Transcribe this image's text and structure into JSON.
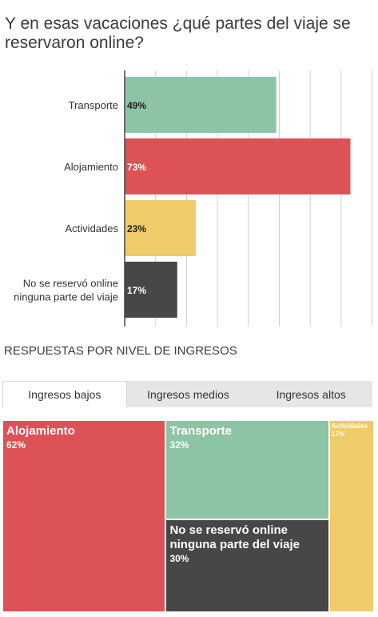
{
  "title": "Y en esas vacaciones ¿qué partes del viaje se reservaron online?",
  "section_title": "RESPUESTAS POR NIVEL DE INGRESOS",
  "tabs": [
    {
      "label": "Ingresos bajos",
      "active": true
    },
    {
      "label": "Ingresos medios",
      "active": false
    },
    {
      "label": "Ingresos altos",
      "active": false
    }
  ],
  "colors": {
    "transporte": "#8ec4a6",
    "alojamiento": "#dc5257",
    "actividades": "#efcb6a",
    "ninguna": "#474747"
  },
  "chart_data": [
    {
      "type": "bar",
      "orientation": "horizontal",
      "categories": [
        "Transporte",
        "Alojamiento",
        "Actividades",
        "No se reservó online ninguna parte del viaje"
      ],
      "values": [
        49,
        73,
        23,
        17
      ],
      "value_labels": [
        "49%",
        "73%",
        "23%",
        "17%"
      ],
      "xlim": [
        0,
        80
      ],
      "grid": true
    },
    {
      "type": "treemap",
      "group": "Ingresos bajos",
      "items": [
        {
          "label": "Alojamiento",
          "value": 62,
          "value_label": "62%"
        },
        {
          "label": "Transporte",
          "value": 32,
          "value_label": "32%"
        },
        {
          "label": "No se reservó online ninguna parte del viaje",
          "value": 30,
          "value_label": "30%"
        },
        {
          "label": "Actividades",
          "value": 17,
          "value_label": "17%"
        }
      ]
    }
  ]
}
